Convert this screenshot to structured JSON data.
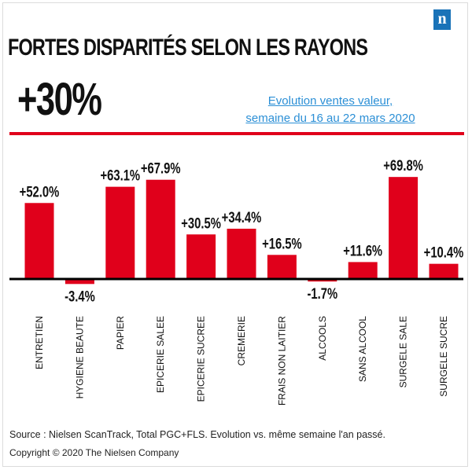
{
  "header": {
    "title": "FORTES DISPARITÉS SELON LES RAYONS",
    "headline": "+30%",
    "subtitle_line1": "Evolution ventes valeur,",
    "subtitle_line2": "semaine du 16 au 22 mars 2020",
    "logo_letter": "n"
  },
  "footer": {
    "source": "Source : Nielsen ScanTrack, Total PGC+FLS. Evolution vs. même semaine l'an passé.",
    "copyright": "Copyright © 2020 The Nielsen Company"
  },
  "colors": {
    "bar": "#e0001b",
    "accent": "#2b8fd6",
    "logo": "#1a73b8"
  },
  "chart_data": {
    "type": "bar",
    "categories": [
      "ENTRETIEN",
      "HYGIENE BEAUTE",
      "PAPIER",
      "EPICERIE SALEE",
      "EPICERIE SUCREE",
      "CREMERIE",
      "FRAIS NON LAITIER",
      "ALCOOLS",
      "SANS ALCOOL",
      "SURGELE SALE",
      "SURGELE SUCRE"
    ],
    "values": [
      52.0,
      -3.4,
      63.1,
      67.9,
      30.5,
      34.4,
      16.5,
      -1.7,
      11.6,
      69.8,
      10.4
    ],
    "data_labels": [
      "+52.0%",
      "-3.4%",
      "+63.1%",
      "+67.9%",
      "+30.5%",
      "+34.4%",
      "+16.5%",
      "-1.7%",
      "+11.6%",
      "+69.8%",
      "+10.4%"
    ],
    "title": "FORTES DISPARITÉS SELON LES RAYONS",
    "xlabel": "",
    "ylabel": "",
    "ylim": [
      -5,
      75
    ],
    "grid": false,
    "legend": "none"
  }
}
